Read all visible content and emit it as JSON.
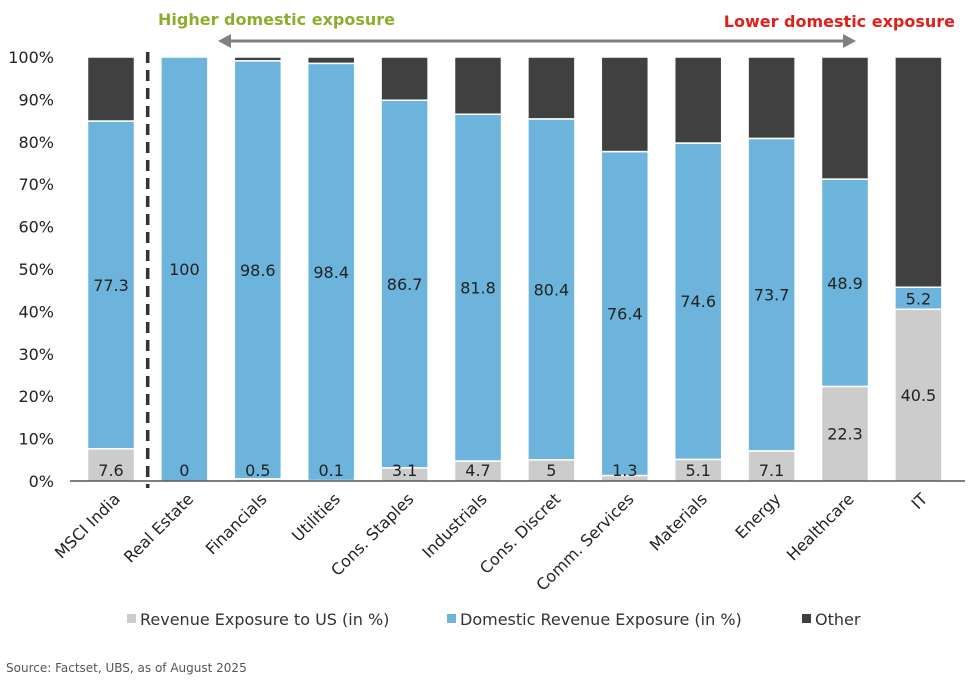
{
  "chart_data": {
    "type": "bar",
    "stacked": true,
    "categories": [
      "MSCI India",
      "Real Estate",
      "Financials",
      "Utilities",
      "Cons. Staples",
      "Industrials",
      "Cons. Discret",
      "Comm. Services",
      "Materials",
      "Energy",
      "Healthcare",
      "IT"
    ],
    "series": [
      {
        "name": "Revenue Exposure to US (in %)",
        "color": "#cccccc",
        "values": [
          7.6,
          0,
          0.5,
          0.1,
          3.1,
          4.7,
          5,
          1.3,
          5.1,
          7.1,
          22.3,
          40.5
        ]
      },
      {
        "name": "Domestic Revenue Exposure (in %)",
        "color": "#6cb4dc",
        "values": [
          77.3,
          100,
          98.6,
          98.4,
          86.7,
          81.8,
          80.4,
          76.4,
          74.6,
          73.7,
          48.9,
          5.2
        ]
      },
      {
        "name": "Other",
        "color": "#404040",
        "values": [
          15.1,
          0,
          0.9,
          1.5,
          10.2,
          13.5,
          14.6,
          22.3,
          20.3,
          19.2,
          28.8,
          54.3
        ]
      }
    ],
    "data_labels": {
      "us": [
        "7.6",
        "0",
        "0.5",
        "0.1",
        "3.1",
        "4.7",
        "5",
        "1.3",
        "5.1",
        "7.1",
        "22.3",
        "40.5"
      ],
      "domestic": [
        "77.3",
        "100",
        "98.6",
        "98.4",
        "86.7",
        "81.8",
        "80.4",
        "76.4",
        "74.6",
        "73.7",
        "48.9",
        "5.2"
      ]
    },
    "y_ticks": [
      "0%",
      "10%",
      "20%",
      "30%",
      "40%",
      "50%",
      "60%",
      "70%",
      "80%",
      "90%",
      "100%"
    ],
    "ylim": [
      0,
      100
    ],
    "legend_position": "bottom",
    "annotations": {
      "left": "Higher domestic exposure",
      "right": "Lower domestic exposure",
      "left_color": "#8cae2c",
      "right_color": "#e0201b",
      "arrow_color": "#808080",
      "divider_color": "#333333"
    }
  },
  "source": "Source: Factset, UBS, as of August 2025"
}
